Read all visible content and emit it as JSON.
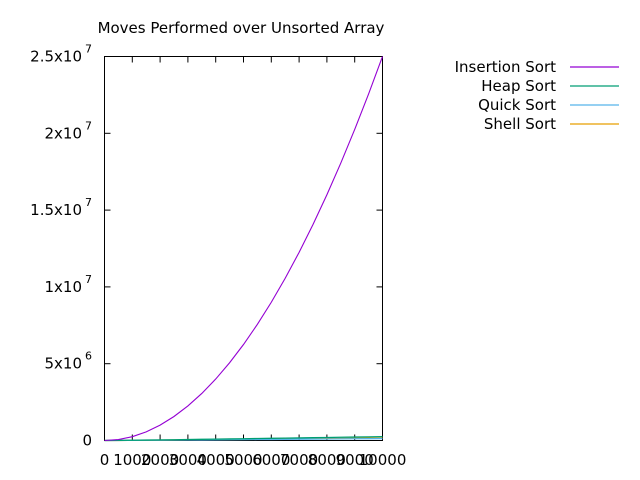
{
  "chart_data": {
    "type": "line",
    "title": "Moves Performed over Unsorted Array",
    "xlabel": "",
    "ylabel": "",
    "xlim": [
      0,
      10000
    ],
    "ylim": [
      0,
      25000000
    ],
    "grid": false,
    "legend_position": "top-right, outside plot",
    "x_ticks": [
      {
        "value": 0,
        "label": "0"
      },
      {
        "value": 1000,
        "label": "1000"
      },
      {
        "value": 2000,
        "label": "2000"
      },
      {
        "value": 3000,
        "label": "3000"
      },
      {
        "value": 4000,
        "label": "4000"
      },
      {
        "value": 5000,
        "label": "5000"
      },
      {
        "value": 6000,
        "label": "6000"
      },
      {
        "value": 7000,
        "label": "7000"
      },
      {
        "value": 8000,
        "label": "8000"
      },
      {
        "value": 9000,
        "label": "9000"
      },
      {
        "value": 10000,
        "label": "10000"
      }
    ],
    "y_ticks": [
      {
        "value": 0,
        "mantissa": "0",
        "exponent": ""
      },
      {
        "value": 5000000,
        "mantissa": "5x10",
        "exponent": "6"
      },
      {
        "value": 10000000,
        "mantissa": "1x10",
        "exponent": "7"
      },
      {
        "value": 15000000,
        "mantissa": "1.5x10",
        "exponent": "7"
      },
      {
        "value": 20000000,
        "mantissa": "2x10",
        "exponent": "7"
      },
      {
        "value": 25000000,
        "mantissa": "2.5x10",
        "exponent": "7"
      }
    ],
    "x": [
      0,
      500,
      1000,
      1500,
      2000,
      2500,
      3000,
      3500,
      4000,
      4500,
      5000,
      5500,
      6000,
      6500,
      7000,
      7500,
      8000,
      8500,
      9000,
      9500,
      10000
    ],
    "series": [
      {
        "name": "Insertion Sort",
        "color": "#9400d3",
        "values": [
          0,
          62500,
          250000,
          562500,
          1000000,
          1562500,
          2250000,
          3062500,
          4000000,
          5062500,
          6250000,
          7562500,
          9000000,
          10562500,
          12250000,
          14062500,
          16000000,
          18062500,
          20250000,
          22562500,
          25000000
        ]
      },
      {
        "name": "Heap Sort",
        "color": "#009e73",
        "values": [
          0,
          8000,
          18000,
          28000,
          40000,
          51000,
          63000,
          76000,
          89000,
          101000,
          115000,
          128000,
          141000,
          155000,
          168000,
          182000,
          196000,
          210000,
          224000,
          238000,
          252000
        ]
      },
      {
        "name": "Quick Sort",
        "color": "#56b4e9",
        "values": [
          0,
          4000,
          9000,
          15000,
          20000,
          26000,
          32000,
          38000,
          44000,
          51000,
          57000,
          64000,
          70000,
          77000,
          84000,
          91000,
          98000,
          105000,
          112000,
          119000,
          126000
        ]
      },
      {
        "name": "Shell Sort",
        "color": "#e69f00",
        "values": [
          0,
          5000,
          11000,
          18000,
          25000,
          32000,
          40000,
          48000,
          56000,
          64000,
          72000,
          80000,
          89000,
          97000,
          106000,
          115000,
          124000,
          133000,
          142000,
          151000,
          160000
        ]
      }
    ]
  }
}
